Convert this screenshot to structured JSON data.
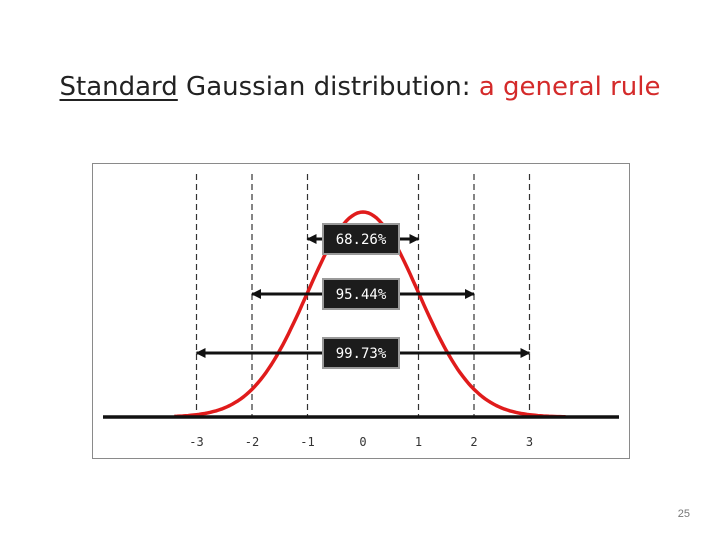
{
  "slide": {
    "title_underlined": "Standard",
    "title_plain": " Gaussian distribution: ",
    "title_highlight": "a general rule",
    "page_number": "25"
  },
  "colors": {
    "curve": "#e01b1b",
    "highlight": "#d42a2a",
    "axis": "#111111",
    "label_box": "#1c1c1c"
  },
  "chart_data": {
    "type": "line",
    "title": "",
    "xlabel": "",
    "ylabel": "",
    "xlim": [
      -3.6,
      3.9
    ],
    "x_ticks": [
      -3,
      -2,
      -1,
      0,
      1,
      2,
      3
    ],
    "x_tick_labels": [
      "-3",
      "-2",
      "-1",
      "0",
      "1",
      "2",
      "3"
    ],
    "guide_lines_at": [
      -3,
      -2,
      -1,
      1,
      2,
      3
    ],
    "series": [
      {
        "function": "standard normal pdf",
        "mean": 0,
        "sd": 1
      }
    ],
    "intervals": [
      {
        "label": "68.26%",
        "from": -1,
        "to": 1
      },
      {
        "label": "95.44%",
        "from": -2,
        "to": 2
      },
      {
        "label": "99.73%",
        "from": -3,
        "to": 3
      }
    ],
    "grid": false,
    "legend": "none"
  }
}
